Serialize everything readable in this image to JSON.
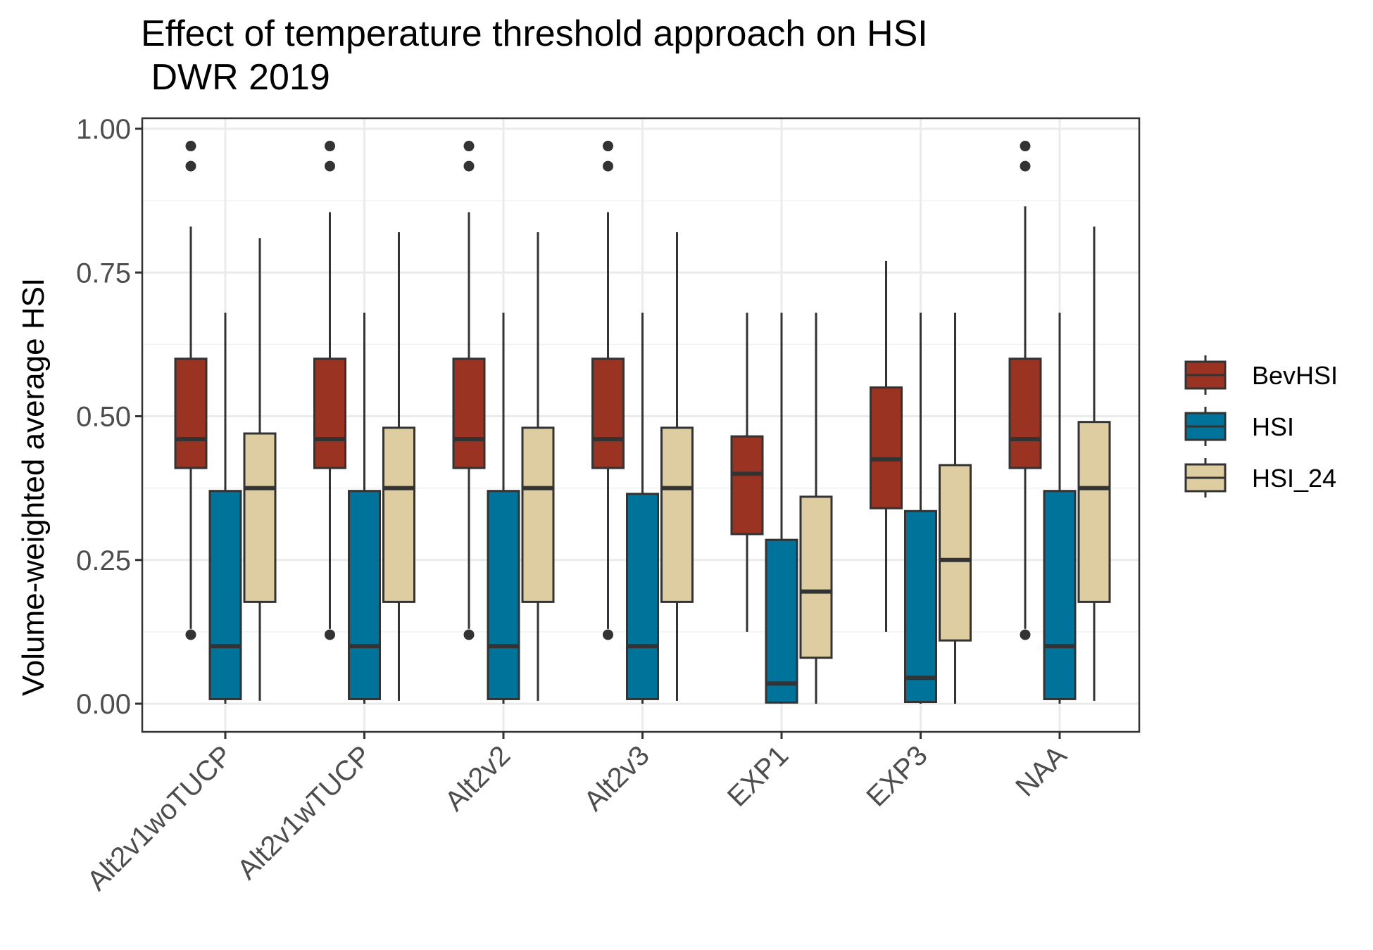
{
  "chart_data": {
    "type": "box",
    "title_line1": "Effect of temperature threshold approach on HSI",
    "title_line2": " DWR 2019",
    "ylabel": "Volume-weighted average HSI",
    "xlabel": "",
    "ylim": [
      -0.05,
      1.02
    ],
    "yticks": [
      0.0,
      0.25,
      0.5,
      0.75,
      1.0
    ],
    "ytick_labels": [
      "0.00",
      "0.25",
      "0.50",
      "0.75",
      "1.00"
    ],
    "grid": true,
    "legend_position": "right",
    "categories": [
      "Alt2v1woTUCP",
      "Alt2v1wTUCP",
      "Alt2v2",
      "Alt2v3",
      "EXP1",
      "EXP3",
      "NAA"
    ],
    "series": [
      {
        "name": "BevHSI",
        "color": "#9b3323",
        "boxes": [
          {
            "min": 0.13,
            "q1": 0.41,
            "median": 0.46,
            "q3": 0.6,
            "max": 0.83,
            "outliers": [
              0.12,
              0.935,
              0.97
            ]
          },
          {
            "min": 0.13,
            "q1": 0.41,
            "median": 0.46,
            "q3": 0.6,
            "max": 0.855,
            "outliers": [
              0.12,
              0.935,
              0.97
            ]
          },
          {
            "min": 0.13,
            "q1": 0.41,
            "median": 0.46,
            "q3": 0.6,
            "max": 0.855,
            "outliers": [
              0.12,
              0.935,
              0.97
            ]
          },
          {
            "min": 0.13,
            "q1": 0.41,
            "median": 0.46,
            "q3": 0.6,
            "max": 0.855,
            "outliers": [
              0.12,
              0.935,
              0.97
            ]
          },
          {
            "min": 0.125,
            "q1": 0.295,
            "median": 0.4,
            "q3": 0.465,
            "max": 0.68,
            "outliers": []
          },
          {
            "min": 0.125,
            "q1": 0.34,
            "median": 0.425,
            "q3": 0.55,
            "max": 0.77,
            "outliers": []
          },
          {
            "min": 0.13,
            "q1": 0.41,
            "median": 0.46,
            "q3": 0.6,
            "max": 0.865,
            "outliers": [
              0.12,
              0.935,
              0.97
            ]
          }
        ]
      },
      {
        "name": "HSI",
        "color": "#00739b",
        "boxes": [
          {
            "min": 0.0,
            "q1": 0.008,
            "median": 0.1,
            "q3": 0.37,
            "max": 0.68,
            "outliers": []
          },
          {
            "min": 0.0,
            "q1": 0.008,
            "median": 0.1,
            "q3": 0.37,
            "max": 0.68,
            "outliers": []
          },
          {
            "min": 0.0,
            "q1": 0.008,
            "median": 0.1,
            "q3": 0.37,
            "max": 0.68,
            "outliers": []
          },
          {
            "min": 0.0,
            "q1": 0.008,
            "median": 0.1,
            "q3": 0.365,
            "max": 0.68,
            "outliers": []
          },
          {
            "min": 0.0,
            "q1": 0.002,
            "median": 0.035,
            "q3": 0.285,
            "max": 0.68,
            "outliers": []
          },
          {
            "min": 0.0,
            "q1": 0.003,
            "median": 0.045,
            "q3": 0.335,
            "max": 0.68,
            "outliers": []
          },
          {
            "min": 0.0,
            "q1": 0.008,
            "median": 0.1,
            "q3": 0.37,
            "max": 0.68,
            "outliers": []
          }
        ]
      },
      {
        "name": "HSI_24",
        "color": "#dfcda2",
        "boxes": [
          {
            "min": 0.005,
            "q1": 0.177,
            "median": 0.375,
            "q3": 0.47,
            "max": 0.81,
            "outliers": []
          },
          {
            "min": 0.005,
            "q1": 0.177,
            "median": 0.375,
            "q3": 0.48,
            "max": 0.82,
            "outliers": []
          },
          {
            "min": 0.005,
            "q1": 0.177,
            "median": 0.375,
            "q3": 0.48,
            "max": 0.82,
            "outliers": []
          },
          {
            "min": 0.005,
            "q1": 0.177,
            "median": 0.375,
            "q3": 0.48,
            "max": 0.82,
            "outliers": []
          },
          {
            "min": 0.0,
            "q1": 0.08,
            "median": 0.195,
            "q3": 0.36,
            "max": 0.68,
            "outliers": []
          },
          {
            "min": 0.0,
            "q1": 0.11,
            "median": 0.25,
            "q3": 0.415,
            "max": 0.68,
            "outliers": []
          },
          {
            "min": 0.005,
            "q1": 0.177,
            "median": 0.375,
            "q3": 0.49,
            "max": 0.83,
            "outliers": []
          }
        ]
      }
    ]
  }
}
